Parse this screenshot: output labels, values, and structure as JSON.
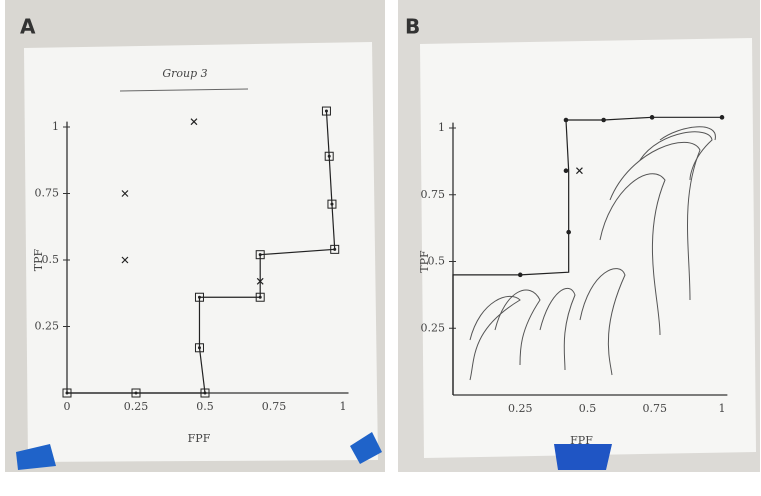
{
  "panels": [
    {
      "label": "A",
      "title": "Group 3",
      "x_label": "FPF",
      "y_label": "TPF",
      "x_ticks": [
        "0",
        "0.25",
        "0.5",
        "0.75",
        "1"
      ],
      "y_ticks": [
        "1",
        "0.75",
        "0.5",
        "0.25"
      ],
      "curve": {
        "x": [
          0,
          0.5,
          0.48,
          0.48,
          0.7,
          0.7,
          0.97,
          0.96,
          0.95,
          0.94
        ],
        "y": [
          0,
          0,
          0.17,
          0.36,
          0.36,
          0.52,
          0.54,
          0.71,
          0.89,
          1.06
        ]
      },
      "squares": [
        [
          0,
          0
        ],
        [
          0.25,
          0
        ],
        [
          0.5,
          0
        ],
        [
          0.48,
          0.17
        ],
        [
          0.48,
          0.36
        ],
        [
          0.7,
          0.36
        ],
        [
          0.7,
          0.52
        ],
        [
          0.97,
          0.54
        ],
        [
          0.96,
          0.71
        ],
        [
          0.95,
          0.89
        ],
        [
          0.94,
          1.06
        ]
      ],
      "crosses": [
        [
          0.21,
          0.75
        ],
        [
          0.21,
          0.5
        ],
        [
          0.46,
          1.02
        ],
        [
          0.7,
          0.42
        ]
      ],
      "dots": []
    },
    {
      "label": "B",
      "x_label": "FPF",
      "y_label": "TPF",
      "x_ticks": [
        "0.25",
        "0.5",
        "0.75",
        "1"
      ],
      "y_ticks": [
        "1",
        "0.75",
        "0.5",
        "0.25"
      ],
      "curve": {
        "x": [
          0,
          0,
          0.25,
          0.43,
          0.43,
          0.42,
          0.56,
          0.74,
          1
        ],
        "y": [
          0,
          0.45,
          0.45,
          0.46,
          0.84,
          1.03,
          1.03,
          1.04,
          1.04
        ]
      },
      "squares": [],
      "crosses": [
        [
          0.47,
          0.84
        ]
      ],
      "dots": [
        [
          0.25,
          0.45
        ],
        [
          0.43,
          0.61
        ],
        [
          0.42,
          0.84
        ],
        [
          0.42,
          1.03
        ],
        [
          0.56,
          1.03
        ],
        [
          0.74,
          1.04
        ],
        [
          1,
          1.04
        ]
      ]
    }
  ]
}
